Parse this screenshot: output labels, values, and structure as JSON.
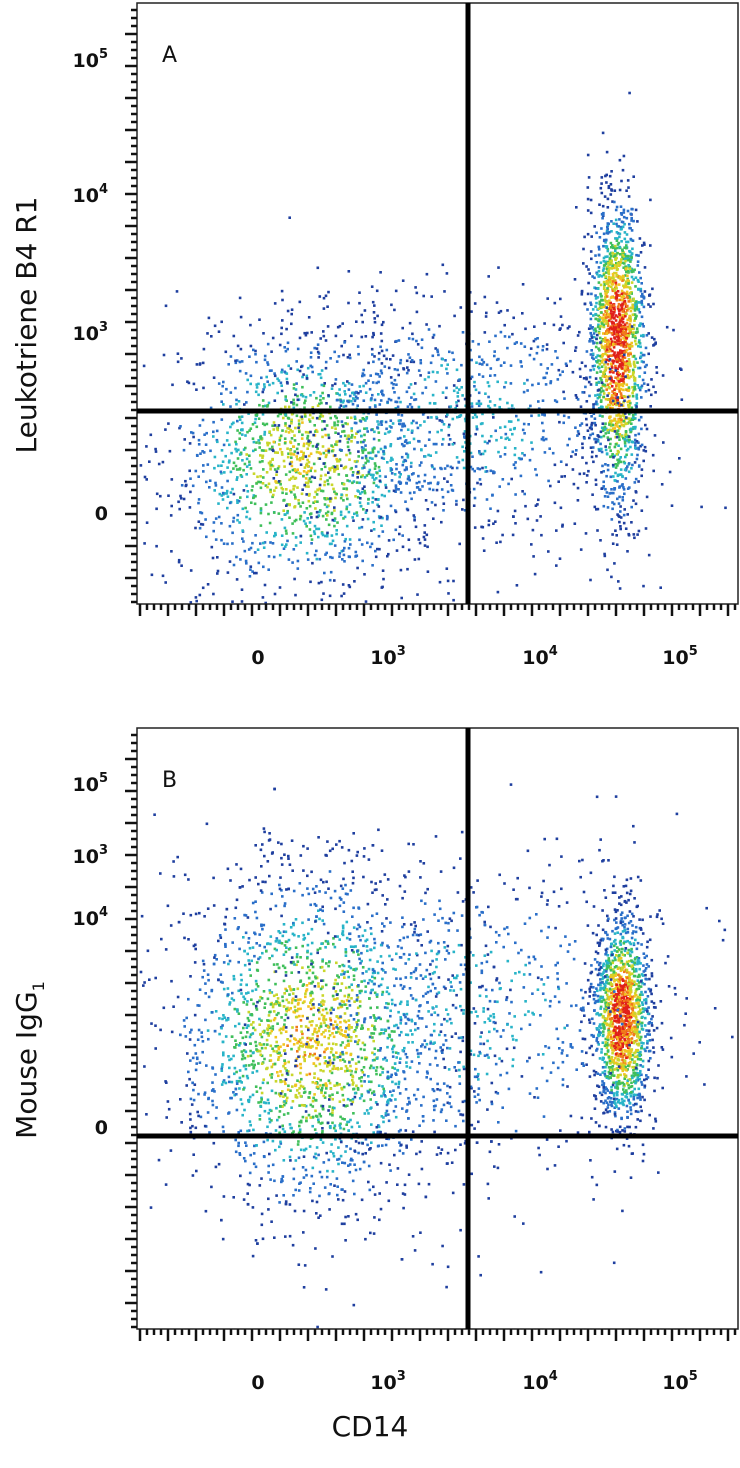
{
  "figure": {
    "x_axis_title": "CD14",
    "colormap": [
      "#1f3f9f",
      "#2a6fc9",
      "#28b4c8",
      "#3fbf5a",
      "#c9d62a",
      "#f2c420",
      "#f07a1a",
      "#e0201a"
    ]
  },
  "chart_data": [
    {
      "type": "scatter",
      "panel_label": "A",
      "xlabel": "CD14",
      "ylabel": "Leukotriene B4 R1",
      "ylabel_subscript": "",
      "x_scale": "biexponential",
      "y_scale": "biexponential",
      "x_ticks": [
        {
          "value": 0,
          "base": "0",
          "exp": ""
        },
        {
          "value": 1000,
          "base": "10",
          "exp": "3"
        },
        {
          "value": 10000,
          "base": "10",
          "exp": "4"
        },
        {
          "value": 100000,
          "base": "10",
          "exp": "5"
        }
      ],
      "y_ticks": [
        {
          "value": 0,
          "base": "0",
          "exp": ""
        },
        {
          "value": 1000,
          "base": "10",
          "exp": "3"
        },
        {
          "value": 10000,
          "base": "10",
          "exp": "4"
        },
        {
          "value": 100000,
          "base": "10",
          "exp": "5"
        }
      ],
      "quadrant_gate": {
        "x": 3000,
        "y": 450
      },
      "grid": false,
      "populations": [
        {
          "x_center": 150,
          "y_center": 130,
          "x_spread": 0.5,
          "y_spread": 0.35,
          "count": 1500,
          "peak": 0.6
        },
        {
          "x_center": 35000,
          "y_center": 1000,
          "x_spread": 0.1,
          "y_spread": 0.45,
          "count": 1700,
          "peak": 1.0
        },
        {
          "x_center": 3000,
          "y_center": 300,
          "x_spread": 0.6,
          "y_spread": 0.35,
          "count": 900,
          "peak": 0.3
        }
      ]
    },
    {
      "type": "scatter",
      "panel_label": "B",
      "xlabel": "CD14",
      "ylabel": "Mouse IgG",
      "ylabel_subscript": "1",
      "x_scale": "biexponential",
      "y_scale": "biexponential",
      "x_ticks": [
        {
          "value": 0,
          "base": "0",
          "exp": ""
        },
        {
          "value": 1000,
          "base": "10",
          "exp": "3"
        },
        {
          "value": 10000,
          "base": "10",
          "exp": "4"
        },
        {
          "value": 100000,
          "base": "10",
          "exp": "5"
        }
      ],
      "y_ticks": [
        {
          "value": 0,
          "base": "0",
          "exp": ""
        },
        {
          "value": 1000,
          "base": "10",
          "exp": "3"
        },
        {
          "value": 10000,
          "base": "10",
          "exp": "4"
        },
        {
          "value": 100000,
          "base": "10",
          "exp": "5"
        }
      ],
      "quadrant_gate": {
        "x": 3000,
        "y": 400
      },
      "grid": false,
      "populations": [
        {
          "x_center": 180,
          "y_center": 140,
          "x_spread": 0.5,
          "y_spread": 0.3,
          "count": 2200,
          "peak": 0.65
        },
        {
          "x_center": 38000,
          "y_center": 190,
          "x_spread": 0.1,
          "y_spread": 0.18,
          "count": 1500,
          "peak": 1.0
        },
        {
          "x_center": 3500,
          "y_center": 200,
          "x_spread": 0.7,
          "y_spread": 0.3,
          "count": 700,
          "peak": 0.3
        }
      ]
    }
  ]
}
